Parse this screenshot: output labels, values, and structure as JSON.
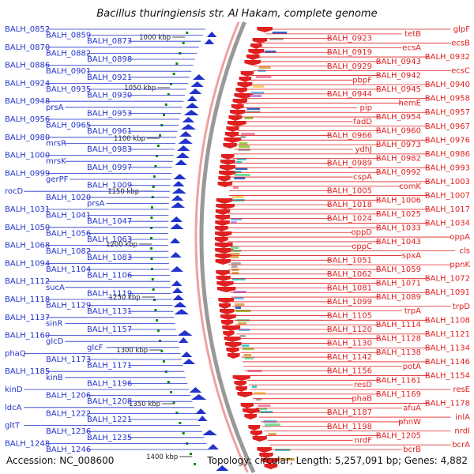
{
  "title": "Bacillus thuringiensis str. Al Hakam, complete genome",
  "footer": {
    "accession": "Accession: NC_008600",
    "topology": "Topology: circular; Length: 5,257,091 bp; Genes: 4,882"
  },
  "colors": {
    "forward": "#2233cc",
    "reverse": "#e02020",
    "backbone": "#999999",
    "gc_skew": "#118811"
  },
  "scale_marks": [
    "1000 kbp",
    "1050 kbp",
    "1100 kbp",
    "1150 kbp",
    "1200 kbp",
    "1250 kbp",
    "1300 kbp",
    "1350 kbp",
    "1400 kbp"
  ],
  "left_labels": [
    "BALH_0852",
    "BALH_0859",
    "BALH_0873",
    "BALH_0870",
    "BALH_0882",
    "BALH_0898",
    "BALH_0886",
    "BALH_0901",
    "BALH_0921",
    "BALH_0924",
    "BALH_0935",
    "BALH_0930",
    "BALH_0948",
    "prsA",
    "BALH_0953",
    "BALH_0956",
    "BALH_0965",
    "BALH_0961",
    "BALH_0980",
    "mrsR",
    "BALH_0983",
    "BALH_1000",
    "mrsK",
    "BALH_0997",
    "BALH_0999",
    "gerPF",
    "BALH_1009",
    "rocD",
    "BALH_1020",
    "prsA",
    "BALH_1031",
    "BALH_1041",
    "BALH_1047",
    "BALH_1050",
    "BALH_1056",
    "BALH_1063",
    "BALH_1068",
    "BALH_1082",
    "BALH_1083",
    "BALH_1094",
    "BALH_1104",
    "BALH_1106",
    "BALH_1112",
    "sucA",
    "BALH_1119",
    "BALH_1118",
    "BALH_1129",
    "BALH_1131",
    "BALH_1137",
    "sinR",
    "BALH_1157",
    "BALH_1160",
    "glcD",
    "glcF",
    "phaQ",
    "BALH_1173",
    "BALH_1171",
    "BALH_1185",
    "kinB",
    "BALH_1196",
    "kinD",
    "BALH_1206",
    "BALH_1208",
    "ldcA",
    "BALH_1222",
    "BALH_1221",
    "gltT",
    "BALH_1236",
    "BALH_1235",
    "BALH_1248",
    "BALH_1246"
  ],
  "right_labels": [
    "glpF",
    "tetB",
    "BALH_0923",
    "ecsB",
    "ecsA",
    "BALH_0919",
    "BALH_0932",
    "BALH_0943",
    "BALH_0929",
    "ecsC",
    "BALH_0942",
    "pbpF",
    "BALH_0940",
    "BALH_0945",
    "BALH_0944",
    "BALH_0958",
    "hemE",
    "pip",
    "BALH_0957",
    "BALH_0954",
    "fadD",
    "BALH_0967",
    "BALH_0960",
    "BALH_0966",
    "BALH_0976",
    "BALH_0973",
    "ydhJ",
    "BALH_0986",
    "BALH_0982",
    "BALH_0989",
    "BALH_0993",
    "BALH_0992",
    "cspA",
    "BALH_1003",
    "comK",
    "BALH_1005",
    "BALH_1007",
    "BALH_1006",
    "BALH_1018",
    "BALH_1017",
    "BALH_1025",
    "BALH_1024",
    "BALH_1034",
    "BALH_1033",
    "oppD",
    "oppA",
    "BALH_1043",
    "oppC",
    "cls",
    "spxA",
    "BALH_1051",
    "ppnK",
    "BALH_1059",
    "BALH_1062",
    "BALH_1072",
    "BALH_1071",
    "BALH_1081",
    "BALH_1091",
    "BALH_1089",
    "BALH_1099",
    "trpD",
    "trpA",
    "BALH_1105",
    "BALH_1108",
    "BALH_1114",
    "BALH_1120",
    "BALH_1121",
    "BALH_1128",
    "BALH_1130",
    "BALH_1134",
    "BALH_1138",
    "BALH_1142",
    "BALH_1146",
    "potA",
    "BALH_1156",
    "BALH_1154",
    "BALH_1161",
    "resD",
    "resE",
    "BALH_1169",
    "phaB",
    "BALH_1178",
    "afuA",
    "BALH_1187",
    "inlA",
    "phnW",
    "BALH_1198",
    "nrdI",
    "BALH_1205",
    "nrdF",
    "bcrA",
    "bcrB"
  ]
}
